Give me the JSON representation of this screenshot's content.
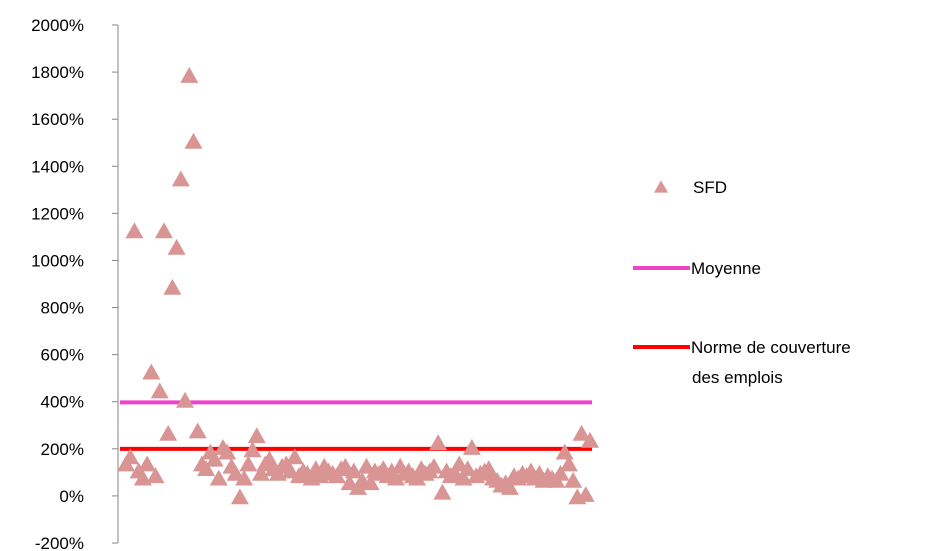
{
  "chart_data": {
    "type": "scatter",
    "title": "",
    "xlabel": "",
    "ylabel": "",
    "ylim": [
      -200,
      2000
    ],
    "y_ticks": [
      "-200%",
      "0%",
      "200%",
      "400%",
      "600%",
      "800%",
      "1000%",
      "1200%",
      "1400%",
      "1600%",
      "1800%",
      "2000%"
    ],
    "grid": false,
    "legend_position": "right",
    "series": [
      {
        "name": "SFD",
        "kind": "scatter",
        "marker": "triangle",
        "color": "#d99594",
        "points": [
          [
            1,
            130
          ],
          [
            2,
            160
          ],
          [
            3,
            1120
          ],
          [
            4,
            100
          ],
          [
            5,
            70
          ],
          [
            6,
            130
          ],
          [
            7,
            520
          ],
          [
            8,
            80
          ],
          [
            9,
            440
          ],
          [
            10,
            1120
          ],
          [
            11,
            260
          ],
          [
            12,
            880
          ],
          [
            13,
            1050
          ],
          [
            14,
            1340
          ],
          [
            15,
            400
          ],
          [
            16,
            1780
          ],
          [
            17,
            1500
          ],
          [
            18,
            270
          ],
          [
            19,
            130
          ],
          [
            20,
            110
          ],
          [
            21,
            180
          ],
          [
            22,
            150
          ],
          [
            23,
            70
          ],
          [
            24,
            200
          ],
          [
            25,
            180
          ],
          [
            26,
            120
          ],
          [
            27,
            90
          ],
          [
            28,
            -10
          ],
          [
            29,
            70
          ],
          [
            30,
            130
          ],
          [
            31,
            190
          ],
          [
            32,
            250
          ],
          [
            33,
            90
          ],
          [
            34,
            130
          ],
          [
            35,
            150
          ],
          [
            36,
            110
          ],
          [
            37,
            90
          ],
          [
            38,
            120
          ],
          [
            39,
            130
          ],
          [
            40,
            100
          ],
          [
            41,
            160
          ],
          [
            42,
            80
          ],
          [
            43,
            100
          ],
          [
            44,
            90
          ],
          [
            45,
            70
          ],
          [
            46,
            110
          ],
          [
            47,
            80
          ],
          [
            48,
            120
          ],
          [
            49,
            100
          ],
          [
            50,
            90
          ],
          [
            51,
            80
          ],
          [
            52,
            110
          ],
          [
            53,
            120
          ],
          [
            54,
            50
          ],
          [
            55,
            100
          ],
          [
            56,
            30
          ],
          [
            57,
            60
          ],
          [
            58,
            120
          ],
          [
            59,
            50
          ],
          [
            60,
            100
          ],
          [
            61,
            90
          ],
          [
            62,
            110
          ],
          [
            63,
            80
          ],
          [
            64,
            100
          ],
          [
            65,
            70
          ],
          [
            66,
            120
          ],
          [
            67,
            90
          ],
          [
            68,
            100
          ],
          [
            69,
            80
          ],
          [
            70,
            70
          ],
          [
            71,
            110
          ],
          [
            72,
            90
          ],
          [
            73,
            100
          ],
          [
            74,
            120
          ],
          [
            75,
            220
          ],
          [
            76,
            10
          ],
          [
            77,
            100
          ],
          [
            78,
            80
          ],
          [
            79,
            90
          ],
          [
            80,
            130
          ],
          [
            81,
            70
          ],
          [
            82,
            110
          ],
          [
            83,
            200
          ],
          [
            84,
            80
          ],
          [
            85,
            90
          ],
          [
            86,
            100
          ],
          [
            87,
            110
          ],
          [
            88,
            70
          ],
          [
            89,
            60
          ],
          [
            90,
            40
          ],
          [
            91,
            50
          ],
          [
            92,
            30
          ],
          [
            93,
            80
          ],
          [
            94,
            70
          ],
          [
            95,
            90
          ],
          [
            96,
            80
          ],
          [
            97,
            100
          ],
          [
            98,
            70
          ],
          [
            99,
            90
          ],
          [
            100,
            60
          ],
          [
            101,
            80
          ],
          [
            102,
            70
          ],
          [
            103,
            60
          ],
          [
            104,
            90
          ],
          [
            105,
            180
          ],
          [
            106,
            130
          ],
          [
            107,
            60
          ],
          [
            108,
            -10
          ],
          [
            109,
            260
          ],
          [
            110,
            0
          ],
          [
            111,
            230
          ]
        ]
      },
      {
        "name": "Moyenne",
        "kind": "hline",
        "value": 397,
        "color": "#ee44cc"
      },
      {
        "name": "Norme de couverture des emplois",
        "kind": "hline",
        "value": 200,
        "color": "#ff0000"
      }
    ],
    "legend": {
      "entries": [
        {
          "label_lines": [
            "SFD"
          ]
        },
        {
          "label_lines": [
            "Moyenne"
          ]
        },
        {
          "label_lines": [
            "Norme de couverture",
            "des emplois"
          ]
        }
      ]
    }
  }
}
